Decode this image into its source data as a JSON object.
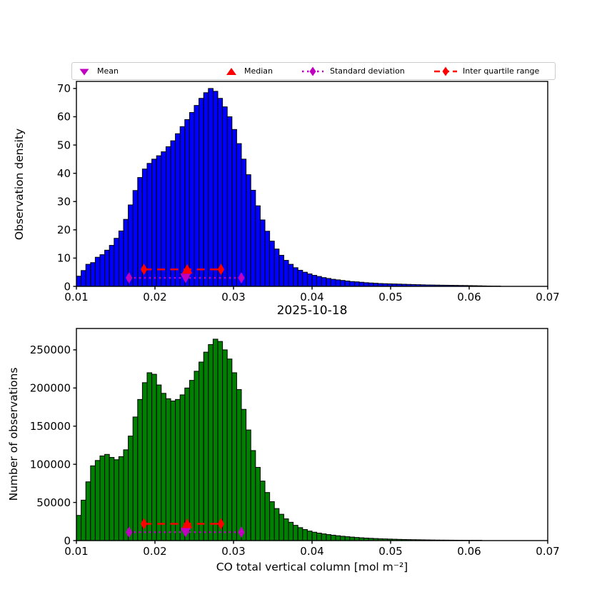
{
  "colors": {
    "background": "#ffffff",
    "blue_bars": "#0000ff",
    "green_bars": "#008000",
    "bar_edge": "#000000",
    "red_marker": "#ff0000",
    "magenta_marker": "#c000c0",
    "axis": "#000000",
    "legend_border": "#cccccc"
  },
  "legend": {
    "items": [
      {
        "label": "Mean",
        "marker": "triangle-down-magenta"
      },
      {
        "label": "Median",
        "marker": "triangle-up-red"
      },
      {
        "label": "Standard deviation",
        "marker": "diamond-dotted-magenta-line"
      },
      {
        "label": "Inter quartile range",
        "marker": "diamond-dashed-red-line"
      }
    ]
  },
  "chart_data": [
    {
      "type": "bar",
      "name": "observation-density-histogram",
      "title": "",
      "ylabel": "Observation density",
      "xlabel": "",
      "bar_color_key": "blue_bars",
      "xlim": [
        0.01,
        0.07
      ],
      "ylim": [
        0,
        72.5
      ],
      "grid": false,
      "xticks": [
        0.01,
        0.02,
        0.03,
        0.04,
        0.05,
        0.06,
        0.07
      ],
      "xtick_labels": [
        "0.01",
        "0.02",
        "0.03",
        "0.04",
        "0.05",
        "0.06",
        "0.07"
      ],
      "yticks": [
        0,
        10,
        20,
        30,
        40,
        50,
        60,
        70
      ],
      "ytick_labels": [
        "0",
        "10",
        "20",
        "30",
        "40",
        "50",
        "60",
        "70"
      ],
      "bin_start": 0.01,
      "bin_width": 0.0006,
      "values": [
        3.6,
        5.6,
        7.8,
        8.4,
        10.3,
        11.2,
        12.8,
        14.5,
        17.0,
        19.6,
        23.7,
        28.8,
        33.9,
        38.5,
        41.5,
        43.5,
        45.0,
        46.2,
        47.6,
        49.4,
        51.5,
        54.0,
        56.5,
        59.0,
        61.5,
        64.0,
        66.5,
        68.5,
        70.0,
        69.0,
        66.5,
        63.5,
        60.0,
        55.5,
        50.5,
        45.0,
        39.5,
        34.0,
        28.5,
        23.5,
        19.5,
        16.0,
        13.2,
        11.0,
        9.2,
        7.8,
        6.6,
        5.7,
        5.0,
        4.4,
        3.9,
        3.5,
        3.1,
        2.8,
        2.5,
        2.3,
        2.1,
        1.9,
        1.7,
        1.6,
        1.45,
        1.3,
        1.2,
        1.1,
        1.0,
        0.95,
        0.9,
        0.85,
        0.8,
        0.75,
        0.7,
        0.65,
        0.6,
        0.55,
        0.5,
        0.48,
        0.45,
        0.42,
        0.4,
        0.38,
        0.35,
        0.32,
        0.3,
        0.27,
        0.24,
        0.2,
        0.16,
        0.12,
        0.08,
        0.05,
        0,
        0,
        0,
        0,
        0,
        0,
        0,
        0,
        0,
        0
      ],
      "stats": {
        "mean": 0.0239,
        "median": 0.0241,
        "std_range": [
          0.0167,
          0.031
        ],
        "iqr_range": [
          0.0186,
          0.0284
        ],
        "std_line_y": 3,
        "iqr_line_y": 6
      }
    },
    {
      "type": "bar",
      "name": "number-of-observations-histogram",
      "title": "2025-10-18",
      "ylabel": "Number of observations",
      "xlabel": "CO total vertical column [mol m⁻²]",
      "bar_color_key": "green_bars",
      "xlim": [
        0.01,
        0.07
      ],
      "ylim": [
        0,
        278000
      ],
      "grid": false,
      "xticks": [
        0.01,
        0.02,
        0.03,
        0.04,
        0.05,
        0.06,
        0.07
      ],
      "xtick_labels": [
        "0.01",
        "0.02",
        "0.03",
        "0.04",
        "0.05",
        "0.06",
        "0.07"
      ],
      "yticks": [
        0,
        50000,
        100000,
        150000,
        200000,
        250000
      ],
      "ytick_labels": [
        "0",
        "50000",
        "100000",
        "150000",
        "200000",
        "250000"
      ],
      "bin_start": 0.01,
      "bin_width": 0.0006,
      "values": [
        33000,
        53000,
        77000,
        98000,
        105000,
        111000,
        113000,
        109000,
        106000,
        110000,
        119000,
        137000,
        162000,
        185000,
        207000,
        220000,
        218000,
        204000,
        193000,
        186000,
        183000,
        185000,
        191000,
        200000,
        210000,
        222000,
        234000,
        247000,
        257000,
        264000,
        261000,
        250000,
        238000,
        220000,
        198000,
        172000,
        145000,
        118000,
        96000,
        78000,
        63000,
        51000,
        42000,
        34500,
        28500,
        24000,
        20000,
        17000,
        14500,
        12500,
        11000,
        9800,
        8800,
        7900,
        7100,
        6400,
        5700,
        5100,
        4600,
        4100,
        3700,
        3300,
        3000,
        2700,
        2400,
        2200,
        2000,
        1800,
        1600,
        1450,
        1300,
        1200,
        1100,
        1000,
        900,
        800,
        700,
        650,
        600,
        550,
        500,
        450,
        400,
        350,
        300,
        250,
        0,
        0,
        0,
        0,
        0,
        0,
        0,
        0,
        0,
        0,
        0,
        0,
        0,
        0
      ],
      "stats": {
        "mean": 0.0239,
        "median": 0.0241,
        "std_range": [
          0.0167,
          0.031
        ],
        "iqr_range": [
          0.0186,
          0.0284
        ],
        "std_line_y": 11000,
        "iqr_line_y": 22000
      }
    }
  ]
}
